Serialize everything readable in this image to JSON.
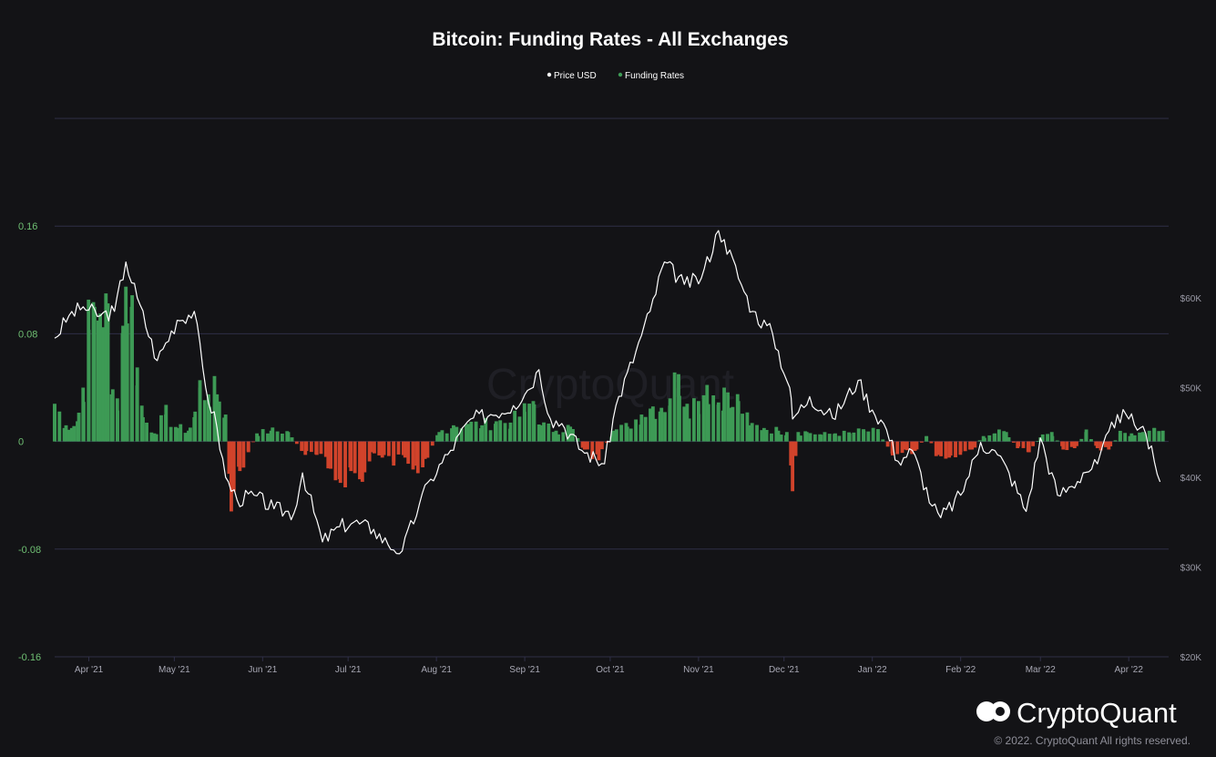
{
  "brand": {
    "watermark": "CryptoQuant",
    "name": "CryptoQuant",
    "copyright": "© 2022. CryptoQuant All rights reserved."
  },
  "colors": {
    "background": "#131316",
    "grid": "#2f2f47",
    "price_line": "#ffffff",
    "positive": "#3d9a55",
    "negative": "#d1432b",
    "left_axis_text": "#6fbf73",
    "right_axis_text": "#9a9aa6"
  },
  "chart_data": {
    "type": "bar",
    "title": "Bitcoin: Funding Rates - All Exchanges",
    "legend": [
      {
        "name": "Price USD",
        "color": "#ffffff"
      },
      {
        "name": "Funding Rates",
        "color": "#3d9a55"
      }
    ],
    "legend_position": "top-center",
    "grid": true,
    "x_range": [
      "2021-03-20",
      "2022-04-15"
    ],
    "x_ticks": [
      "Apr '21",
      "May '21",
      "Jun '21",
      "Jul '21",
      "Aug '21",
      "Sep '21",
      "Oct '21",
      "Nov '21",
      "Dec '21",
      "Jan '22",
      "Feb '22",
      "Mar '22",
      "Apr '22"
    ],
    "y_left": {
      "label": "",
      "ylim": [
        -0.16,
        0.24
      ],
      "ticks": [
        "0.16",
        "0.08",
        "0",
        "-0.08",
        "-0.16"
      ]
    },
    "y_right": {
      "label": "",
      "ylim": [
        20000,
        80000
      ],
      "ticks": [
        "$60K",
        "$50K",
        "$40K",
        "$30K",
        "$20K"
      ]
    },
    "series": [
      {
        "name": "Price USD",
        "type": "line",
        "axis": "right",
        "x": [
          "2021-03-20",
          "2021-03-25",
          "2021-03-30",
          "2021-04-05",
          "2021-04-10",
          "2021-04-14",
          "2021-04-18",
          "2021-04-25",
          "2021-05-02",
          "2021-05-08",
          "2021-05-12",
          "2021-05-16",
          "2021-05-19",
          "2021-05-23",
          "2021-05-29",
          "2021-06-05",
          "2021-06-12",
          "2021-06-15",
          "2021-06-22",
          "2021-06-28",
          "2021-07-03",
          "2021-07-10",
          "2021-07-15",
          "2021-07-20",
          "2021-07-26",
          "2021-07-30",
          "2021-08-06",
          "2021-08-13",
          "2021-08-20",
          "2021-08-28",
          "2021-09-02",
          "2021-09-06",
          "2021-09-10",
          "2021-09-14",
          "2021-09-21",
          "2021-09-29",
          "2021-10-03",
          "2021-10-10",
          "2021-10-15",
          "2021-10-20",
          "2021-10-27",
          "2021-11-02",
          "2021-11-08",
          "2021-11-10",
          "2021-11-16",
          "2021-11-20",
          "2021-11-27",
          "2021-12-03",
          "2021-12-04",
          "2021-12-10",
          "2021-12-18",
          "2021-12-27",
          "2022-01-01",
          "2022-01-05",
          "2022-01-10",
          "2022-01-15",
          "2022-01-22",
          "2022-01-25",
          "2022-02-01",
          "2022-02-08",
          "2022-02-14",
          "2022-02-18",
          "2022-02-24",
          "2022-03-01",
          "2022-03-07",
          "2022-03-12",
          "2022-03-16",
          "2022-03-21",
          "2022-03-28",
          "2022-04-01",
          "2022-04-05",
          "2022-04-09",
          "2022-04-12"
        ],
        "values": [
          55500,
          58000,
          59000,
          58000,
          58500,
          64000,
          60000,
          53000,
          57500,
          58500,
          50000,
          45500,
          40000,
          37500,
          38000,
          36500,
          36000,
          40500,
          32800,
          34500,
          35000,
          34200,
          32500,
          31800,
          37000,
          39800,
          43000,
          46500,
          47000,
          48000,
          49700,
          52000,
          46500,
          46000,
          43000,
          41500,
          48000,
          54000,
          58500,
          64000,
          61500,
          62200,
          67500,
          66500,
          61500,
          58500,
          56000,
          50000,
          46500,
          49000,
          46600,
          50800,
          47500,
          46000,
          41800,
          43000,
          36800,
          35500,
          38000,
          43900,
          42500,
          40500,
          36200,
          44400,
          38000,
          39000,
          40500,
          41500,
          47000,
          46500,
          45500,
          43500,
          39500
        ]
      },
      {
        "name": "Funding Rates",
        "type": "bar",
        "axis": "left",
        "x": [
          "2021-03-20",
          "2021-03-24",
          "2021-03-26",
          "2021-03-28",
          "2021-03-30",
          "2021-04-01",
          "2021-04-03",
          "2021-04-05",
          "2021-04-07",
          "2021-04-09",
          "2021-04-11",
          "2021-04-13",
          "2021-04-14",
          "2021-04-16",
          "2021-04-18",
          "2021-04-20",
          "2021-04-24",
          "2021-04-28",
          "2021-05-02",
          "2021-05-06",
          "2021-05-08",
          "2021-05-10",
          "2021-05-13",
          "2021-05-16",
          "2021-05-19",
          "2021-05-21",
          "2021-05-24",
          "2021-05-27",
          "2021-05-30",
          "2021-06-04",
          "2021-06-10",
          "2021-06-16",
          "2021-06-20",
          "2021-06-24",
          "2021-06-28",
          "2021-07-02",
          "2021-07-06",
          "2021-07-09",
          "2021-07-13",
          "2021-07-17",
          "2021-07-21",
          "2021-07-25",
          "2021-07-28",
          "2021-08-02",
          "2021-08-07",
          "2021-08-12",
          "2021-08-17",
          "2021-08-22",
          "2021-08-27",
          "2021-09-01",
          "2021-09-04",
          "2021-09-07",
          "2021-09-12",
          "2021-09-17",
          "2021-09-22",
          "2021-09-27",
          "2021-10-02",
          "2021-10-07",
          "2021-10-12",
          "2021-10-16",
          "2021-10-19",
          "2021-10-22",
          "2021-10-25",
          "2021-10-28",
          "2021-11-01",
          "2021-11-04",
          "2021-11-08",
          "2021-11-10",
          "2021-11-12",
          "2021-11-15",
          "2021-11-19",
          "2021-11-24",
          "2021-11-29",
          "2021-12-02",
          "2021-12-04",
          "2021-12-06",
          "2021-12-09",
          "2021-12-14",
          "2021-12-19",
          "2021-12-24",
          "2021-12-29",
          "2022-01-03",
          "2022-01-08",
          "2022-01-12",
          "2022-01-16",
          "2022-01-20",
          "2022-01-24",
          "2022-01-28",
          "2022-02-01",
          "2022-02-05",
          "2022-02-09",
          "2022-02-13",
          "2022-02-17",
          "2022-02-21",
          "2022-02-25",
          "2022-03-01",
          "2022-03-05",
          "2022-03-09",
          "2022-03-13",
          "2022-03-17",
          "2022-03-21",
          "2022-03-25",
          "2022-03-29",
          "2022-04-02",
          "2022-04-06",
          "2022-04-10",
          "2022-04-13"
        ],
        "values": [
          0.028,
          0.012,
          0.01,
          0.015,
          0.04,
          0.083,
          0.1,
          0.095,
          0.11,
          0.035,
          0.032,
          0.086,
          0.115,
          0.1,
          0.055,
          0.018,
          0.006,
          0.02,
          0.01,
          0.008,
          0.018,
          0.04,
          0.035,
          0.035,
          0.02,
          -0.052,
          -0.022,
          -0.008,
          0.006,
          0.008,
          0.007,
          -0.01,
          -0.01,
          -0.02,
          -0.028,
          -0.022,
          -0.03,
          -0.008,
          -0.012,
          -0.015,
          -0.012,
          -0.018,
          -0.013,
          0.007,
          0.012,
          0.013,
          0.012,
          0.015,
          0.014,
          0.022,
          0.03,
          0.012,
          0.008,
          0.011,
          -0.006,
          -0.014,
          0.008,
          0.011,
          0.02,
          0.026,
          0.025,
          0.032,
          0.05,
          0.028,
          0.03,
          0.042,
          0.029,
          0.04,
          0.025,
          0.03,
          0.012,
          0.01,
          0.008,
          0.007,
          -0.037,
          0.007,
          0.007,
          0.005,
          0.006,
          0.006,
          0.008,
          0.007,
          -0.009,
          -0.006,
          -0.007,
          0.004,
          -0.01,
          -0.012,
          -0.008,
          -0.006,
          0.004,
          0.006,
          0.007,
          -0.005,
          -0.008,
          0.003,
          0.007,
          -0.006,
          -0.005,
          0.007,
          -0.005,
          -0.006,
          0.006,
          0.006,
          0.007,
          0.01,
          0.008
        ]
      }
    ]
  }
}
